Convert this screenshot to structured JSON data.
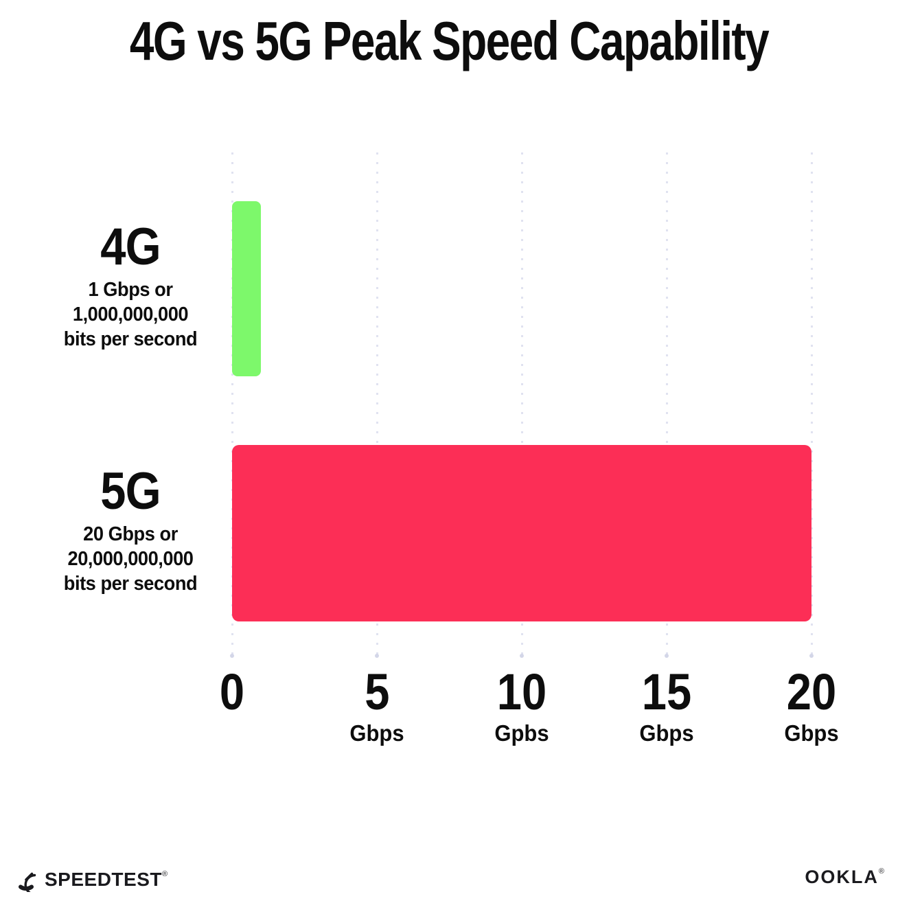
{
  "title": "4G vs 5G Peak Speed Capability",
  "chart_data": {
    "type": "bar",
    "orientation": "horizontal",
    "title": "4G vs 5G Peak Speed Capability",
    "categories": [
      "4G",
      "5G"
    ],
    "values": [
      1,
      20
    ],
    "value_unit": "Gbps",
    "xlim": [
      0,
      20
    ],
    "grid": "dotted vertical gridlines at 0, 5, 10, 15, 20",
    "bar_colors": [
      "#7DF86B",
      "#FC2E56"
    ],
    "category_sublabels": [
      "1 Gbps or\n1,000,000,000\nbits per second",
      "20 Gbps or\n20,000,000,000\nbits per second"
    ],
    "ticks": [
      {
        "label": "0",
        "unit": ""
      },
      {
        "label": "5",
        "unit": "Gbps"
      },
      {
        "label": "10",
        "unit": "Gpbs"
      },
      {
        "label": "15",
        "unit": "Gbps"
      },
      {
        "label": "20",
        "unit": "Gbps"
      }
    ]
  },
  "footer": {
    "left_logo": "SPEEDTEST",
    "left_logo_mark": "®",
    "right_logo": "OOKLA",
    "right_logo_mark": "®"
  },
  "colors": {
    "background": "#FFFFFF",
    "text": "#0D0D0D",
    "gridline": "#E0E2F0",
    "bar_4g": "#7DF86B",
    "bar_5g": "#FC2E56"
  }
}
